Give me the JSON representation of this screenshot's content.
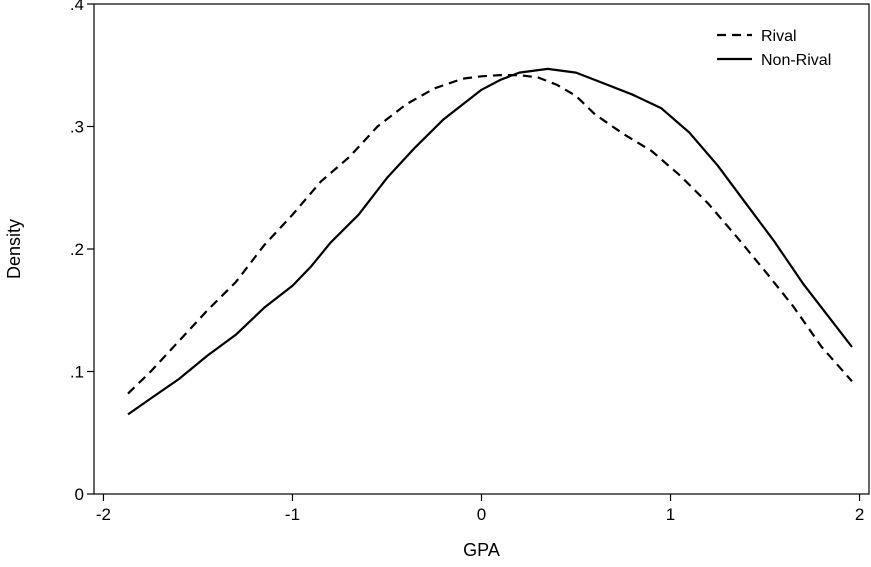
{
  "chart_data": {
    "type": "line",
    "title": "",
    "xlabel": "GPA",
    "ylabel": "Density",
    "xlim": [
      -2.05,
      2.05
    ],
    "ylim": [
      0,
      0.4
    ],
    "xticks": [
      -2,
      -1,
      0,
      1,
      2
    ],
    "xtick_labels": [
      "-2",
      "-1",
      "0",
      "1",
      "2"
    ],
    "yticks": [
      0,
      0.1,
      0.2,
      0.3,
      0.4
    ],
    "ytick_labels": [
      "0",
      ".1",
      ".2",
      ".3",
      ".4"
    ],
    "grid": false,
    "legend_position": "top-right",
    "series": [
      {
        "name": "Rival",
        "style": "dashed",
        "color": "#000000",
        "x": [
          -1.87,
          -1.75,
          -1.6,
          -1.45,
          -1.3,
          -1.15,
          -1.0,
          -0.85,
          -0.7,
          -0.55,
          -0.4,
          -0.25,
          -0.1,
          0.0,
          0.1,
          0.2,
          0.3,
          0.4,
          0.5,
          0.6,
          0.75,
          0.9,
          1.05,
          1.2,
          1.35,
          1.5,
          1.65,
          1.8,
          1.96
        ],
        "y": [
          0.082,
          0.1,
          0.125,
          0.15,
          0.173,
          0.203,
          0.228,
          0.255,
          0.275,
          0.3,
          0.318,
          0.331,
          0.339,
          0.341,
          0.342,
          0.342,
          0.34,
          0.334,
          0.325,
          0.31,
          0.294,
          0.28,
          0.26,
          0.237,
          0.21,
          0.182,
          0.153,
          0.12,
          0.092
        ]
      },
      {
        "name": "Non-Rival",
        "style": "solid",
        "color": "#000000",
        "x": [
          -1.87,
          -1.75,
          -1.6,
          -1.45,
          -1.3,
          -1.15,
          -1.0,
          -0.9,
          -0.8,
          -0.65,
          -0.5,
          -0.35,
          -0.2,
          -0.1,
          0.0,
          0.1,
          0.2,
          0.35,
          0.5,
          0.65,
          0.8,
          0.95,
          1.1,
          1.25,
          1.4,
          1.55,
          1.7,
          1.82,
          1.96
        ],
        "y": [
          0.065,
          0.078,
          0.094,
          0.113,
          0.13,
          0.152,
          0.17,
          0.186,
          0.205,
          0.228,
          0.258,
          0.283,
          0.306,
          0.318,
          0.33,
          0.338,
          0.344,
          0.347,
          0.344,
          0.335,
          0.326,
          0.315,
          0.295,
          0.268,
          0.237,
          0.206,
          0.172,
          0.148,
          0.12
        ]
      }
    ]
  }
}
